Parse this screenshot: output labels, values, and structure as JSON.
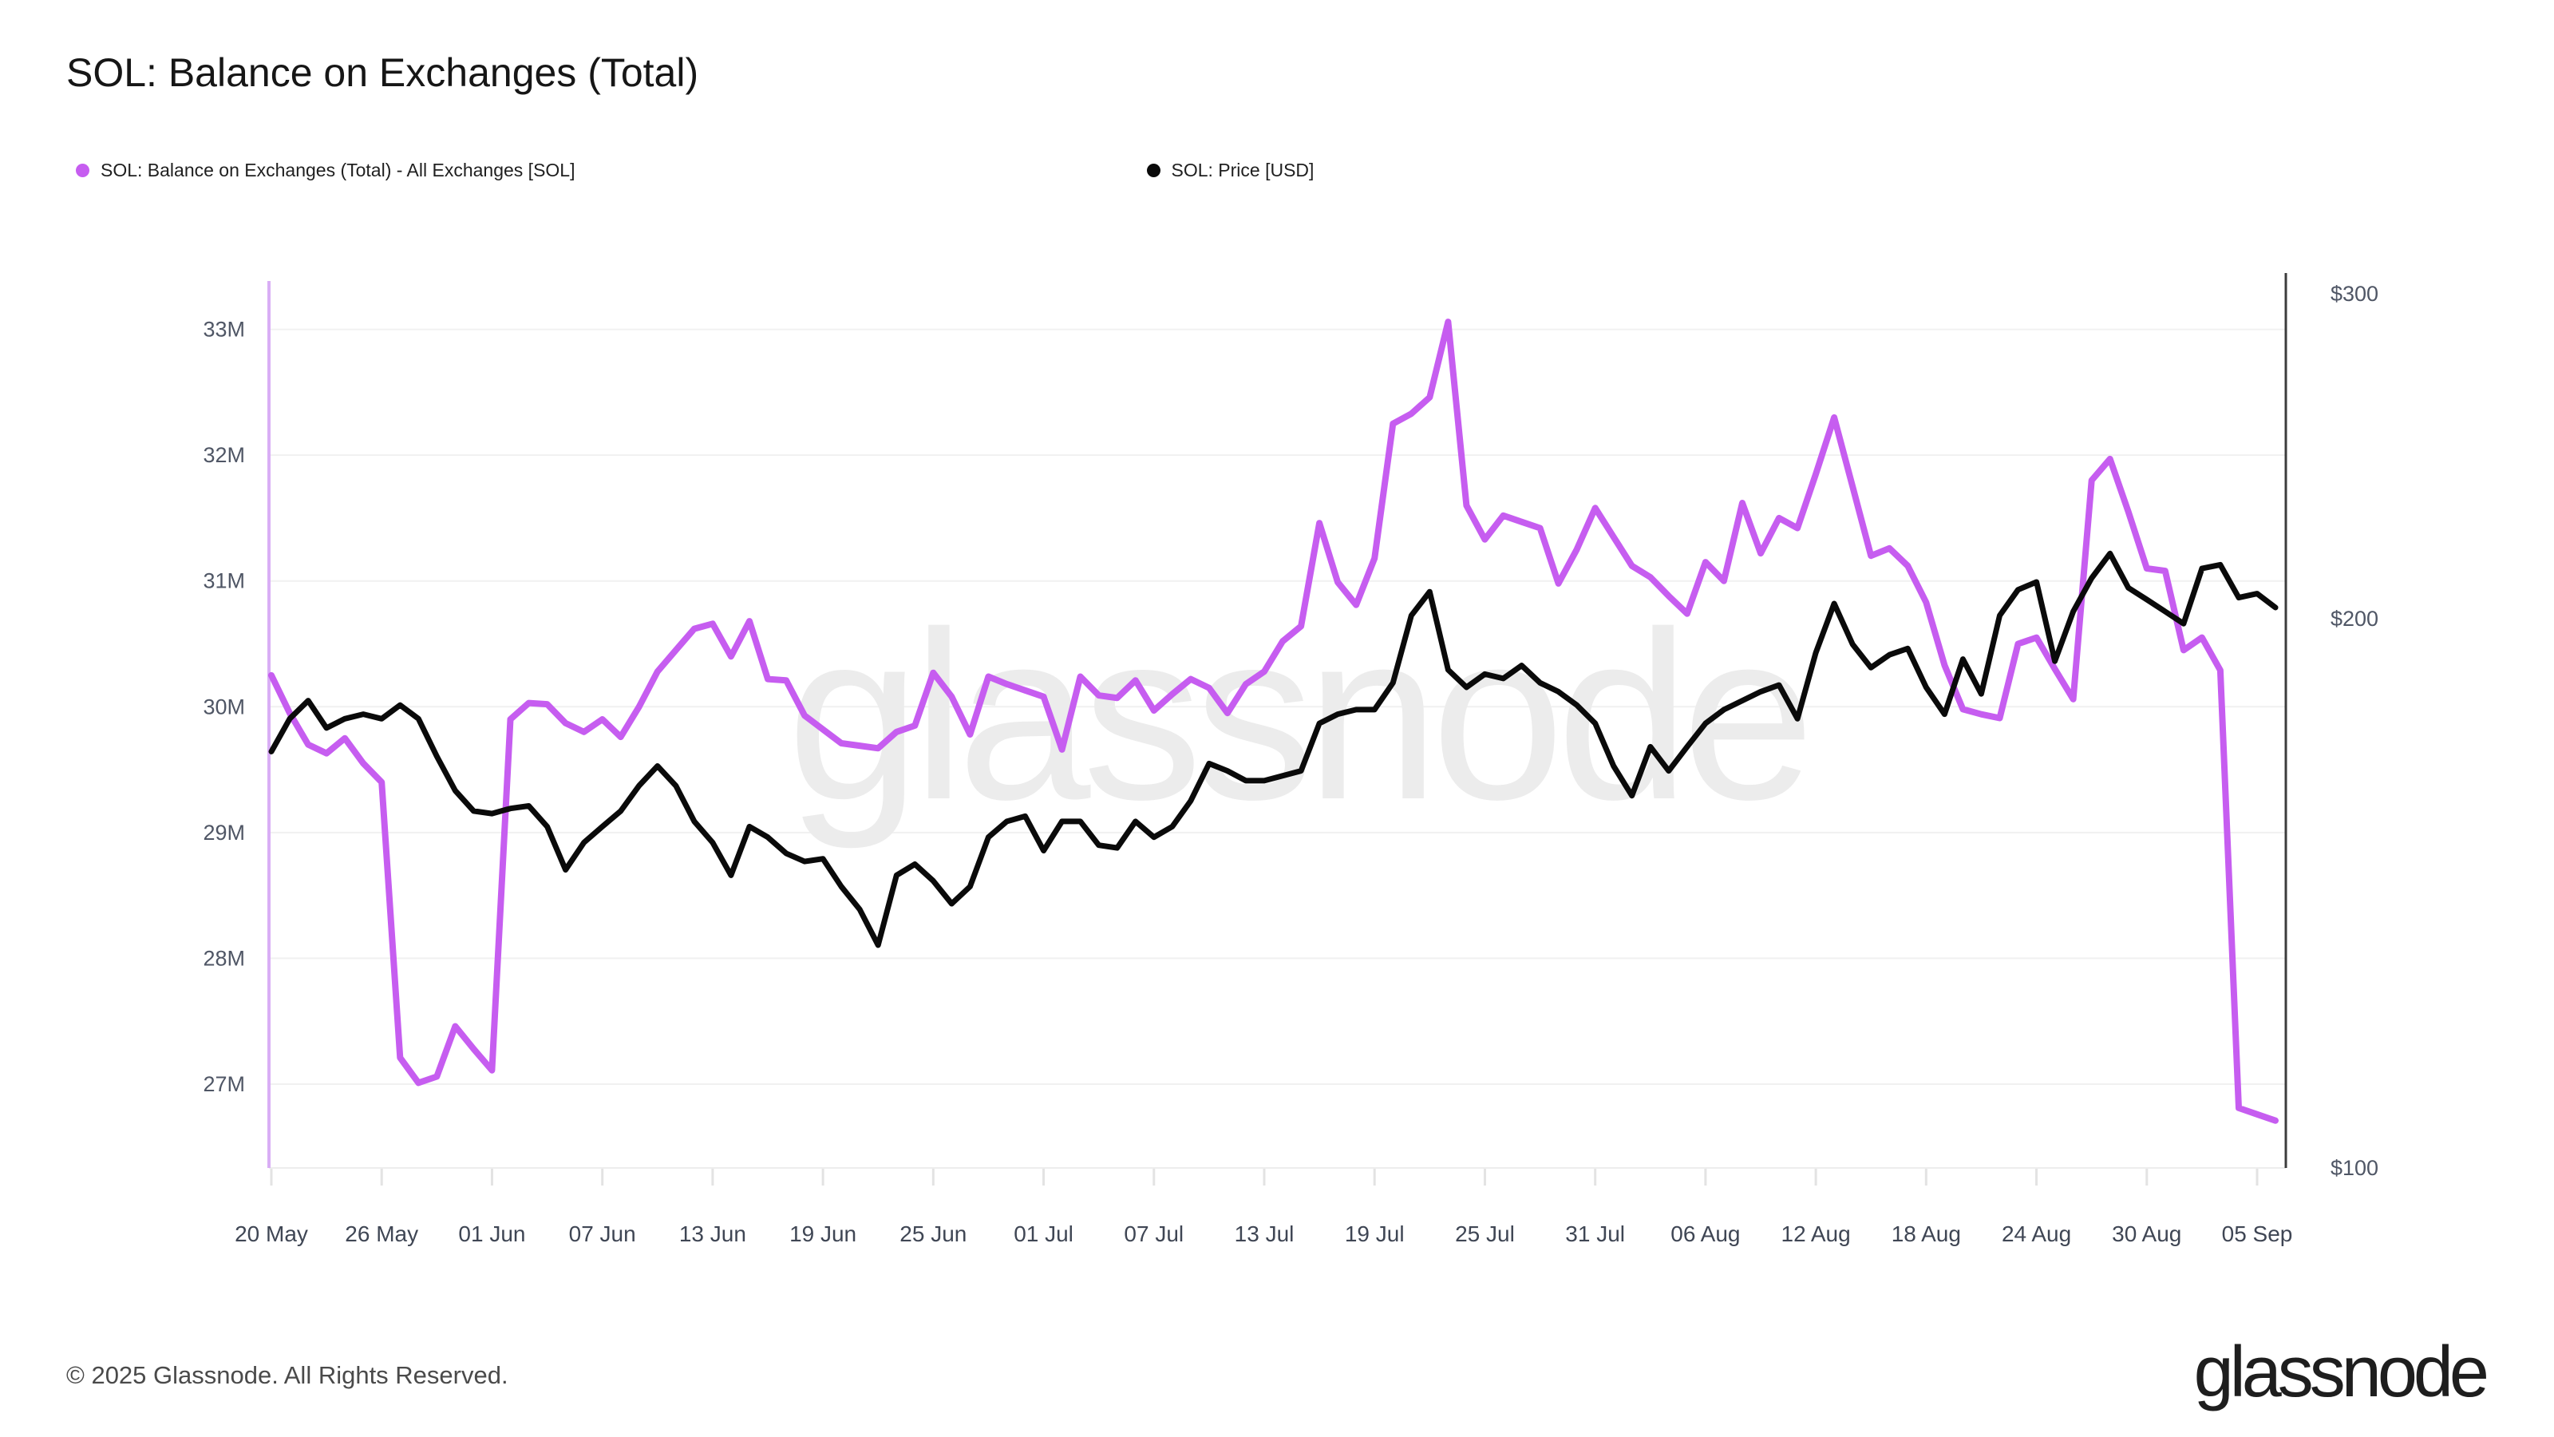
{
  "title": "SOL: Balance on Exchanges (Total)",
  "legend": [
    {
      "label": "SOL: Balance on Exchanges (Total) - All Exchanges [SOL]",
      "color": "#c65df0"
    },
    {
      "label": "SOL: Price [USD]",
      "color": "#0a0a0a"
    }
  ],
  "watermark": "glassnode",
  "footer": {
    "copyright": "© 2025 Glassnode. All Rights Reserved.",
    "logo_text": "glassnode"
  },
  "colors": {
    "balance_line": "#c65df0",
    "left_axis_line": "#d9aef5",
    "price_line": "#0a0a0a",
    "right_axis_line": "#3c3c3c",
    "grid": "#f1f1f1",
    "tick_label": "#4f5665",
    "watermark": "#ececec"
  },
  "chart_data": {
    "type": "line",
    "title": "SOL: Balance on Exchanges (Total)",
    "x_start_date": "2025-05-20",
    "x_end_date": "2025-09-06",
    "x_tick_labels": [
      "20 May",
      "26 May",
      "01 Jun",
      "07 Jun",
      "13 Jun",
      "19 Jun",
      "25 Jun",
      "01 Jul",
      "07 Jul",
      "13 Jul",
      "19 Jul",
      "25 Jul",
      "31 Jul",
      "06 Aug",
      "12 Aug",
      "18 Aug",
      "24 Aug",
      "30 Aug",
      "05 Sep"
    ],
    "x_tick_every_days": 6,
    "left_axis": {
      "label_format": "M SOL",
      "ticks": [
        "33M",
        "32M",
        "31M",
        "30M",
        "29M",
        "28M",
        "27M"
      ],
      "min": 26.3,
      "max": 33.4,
      "scale": "linear"
    },
    "right_axis": {
      "label_format": "USD",
      "ticks": [
        "$300",
        "$200",
        "$100"
      ],
      "min": 100,
      "max": 300,
      "scale": "log"
    },
    "grid": "horizontal-only",
    "legend_position": "top-left",
    "series": [
      {
        "name": "SOL: Balance on Exchanges (Total) - All Exchanges [SOL]",
        "axis": "left",
        "unit": "M SOL",
        "values": [
          30.25,
          29.95,
          29.7,
          29.63,
          29.75,
          29.55,
          29.4,
          27.21,
          27.01,
          27.06,
          27.46,
          27.28,
          27.11,
          29.9,
          30.03,
          30.02,
          29.87,
          29.8,
          29.9,
          29.76,
          30.0,
          30.28,
          30.45,
          30.62,
          30.66,
          30.4,
          30.68,
          30.22,
          30.21,
          29.93,
          29.82,
          29.71,
          29.69,
          29.67,
          29.8,
          29.85,
          30.27,
          30.08,
          29.78,
          30.24,
          30.18,
          30.13,
          30.08,
          29.66,
          30.24,
          30.09,
          30.07,
          30.21,
          29.97,
          30.1,
          30.22,
          30.15,
          29.95,
          30.18,
          30.28,
          30.52,
          30.64,
          31.46,
          30.99,
          30.81,
          31.18,
          32.25,
          32.33,
          32.46,
          33.06,
          31.6,
          31.33,
          31.52,
          31.47,
          31.42,
          30.98,
          31.25,
          31.58,
          31.35,
          31.12,
          31.03,
          30.88,
          30.74,
          31.15,
          31.0,
          31.62,
          31.22,
          31.5,
          31.42,
          31.85,
          32.3,
          31.75,
          31.2,
          31.26,
          31.12,
          30.83,
          30.33,
          29.98,
          29.94,
          29.91,
          30.5,
          30.55,
          30.3,
          30.06,
          31.8,
          31.97,
          31.55,
          31.1,
          31.08,
          30.45,
          30.55,
          30.29,
          26.81,
          26.76,
          26.71
        ]
      },
      {
        "name": "SOL: Price [USD]",
        "axis": "right",
        "unit": "USD",
        "values": [
          168,
          175,
          179,
          173,
          175,
          176,
          175,
          178,
          175,
          167,
          160,
          156,
          155.5,
          156.5,
          157,
          153,
          145,
          150,
          153,
          156,
          161,
          165,
          161,
          154,
          150,
          144,
          153,
          151,
          148,
          146.5,
          147,
          142,
          138,
          132,
          144,
          146,
          143,
          139,
          142,
          151,
          154,
          155,
          148.5,
          154,
          154,
          149.5,
          149,
          154,
          151,
          153,
          158,
          165.5,
          164,
          162,
          162,
          163,
          164,
          174,
          176,
          177,
          177,
          183,
          199,
          205,
          186,
          182,
          185,
          184,
          187,
          183,
          181,
          178,
          174,
          165,
          159,
          169,
          164,
          169,
          174,
          177,
          179,
          181,
          182.5,
          175,
          190,
          202,
          192,
          186.5,
          189.5,
          191,
          182,
          176,
          188.5,
          180.5,
          199,
          205.5,
          207.5,
          188,
          200,
          208.5,
          215,
          206,
          203,
          200,
          197,
          211,
          212,
          203.5,
          204.5,
          201
        ]
      }
    ]
  }
}
